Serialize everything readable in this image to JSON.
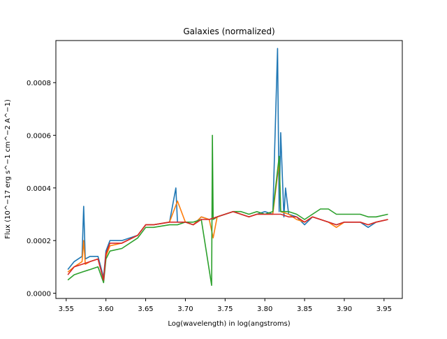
{
  "chart_data": {
    "type": "line",
    "title": "Galaxies (normalized)",
    "xlabel": "Log(wavelength) in log(angstroms)",
    "ylabel": "Flux (10^−17 erg s^−1 cm^−2 A^−1)",
    "xlim": [
      3.537,
      3.973
    ],
    "ylim": [
      -2e-05,
      0.00096
    ],
    "grid": false,
    "legend": "none",
    "x_ticks": [
      3.55,
      3.6,
      3.65,
      3.7,
      3.75,
      3.8,
      3.85,
      3.9,
      3.95
    ],
    "x_tick_labels": [
      "3.55",
      "3.60",
      "3.65",
      "3.70",
      "3.75",
      "3.80",
      "3.85",
      "3.90",
      "3.95"
    ],
    "y_ticks": [
      0.0,
      0.0002,
      0.0004,
      0.0006,
      0.0008
    ],
    "y_tick_labels": [
      "0.0000",
      "0.0002",
      "0.0004",
      "0.0006",
      "0.0008"
    ],
    "series": [
      {
        "color": "#1f77b4",
        "x": [
          3.552,
          3.56,
          3.57,
          3.572,
          3.574,
          3.58,
          3.59,
          3.597,
          3.6,
          3.605,
          3.62,
          3.64,
          3.65,
          3.66,
          3.68,
          3.688,
          3.69,
          3.7,
          3.71,
          3.72,
          3.73,
          3.74,
          3.75,
          3.76,
          3.77,
          3.78,
          3.79,
          3.8,
          3.81,
          3.816,
          3.818,
          3.82,
          3.824,
          3.826,
          3.83,
          3.84,
          3.85,
          3.86,
          3.87,
          3.88,
          3.89,
          3.9,
          3.91,
          3.92,
          3.93,
          3.94,
          3.955
        ],
        "y": [
          9e-05,
          0.00012,
          0.00014,
          0.00033,
          0.00013,
          0.00014,
          0.00014,
          6e-05,
          0.00016,
          0.0002,
          0.0002,
          0.00022,
          0.00026,
          0.00026,
          0.00027,
          0.0004,
          0.00027,
          0.00027,
          0.00026,
          0.00029,
          0.00028,
          0.00029,
          0.0003,
          0.00031,
          0.0003,
          0.00029,
          0.0003,
          0.00031,
          0.0003,
          0.00093,
          0.00031,
          0.00061,
          0.00029,
          0.0004,
          0.0003,
          0.00029,
          0.00026,
          0.00029,
          0.00028,
          0.00027,
          0.00026,
          0.00027,
          0.00027,
          0.00027,
          0.00025,
          0.00027,
          0.00028
        ]
      },
      {
        "color": "#ff7f0e",
        "x": [
          3.552,
          3.56,
          3.57,
          3.572,
          3.574,
          3.58,
          3.59,
          3.597,
          3.6,
          3.605,
          3.62,
          3.64,
          3.65,
          3.66,
          3.68,
          3.69,
          3.7,
          3.71,
          3.72,
          3.73,
          3.735,
          3.74,
          3.75,
          3.76,
          3.77,
          3.78,
          3.79,
          3.8,
          3.81,
          3.818,
          3.82,
          3.83,
          3.84,
          3.85,
          3.86,
          3.87,
          3.88,
          3.89,
          3.9,
          3.91,
          3.92,
          3.93,
          3.94,
          3.955
        ],
        "y": [
          8e-05,
          0.0001,
          0.00012,
          0.0002,
          0.00011,
          0.00012,
          0.00013,
          5e-05,
          0.00014,
          0.00018,
          0.00019,
          0.00022,
          0.00026,
          0.00026,
          0.00027,
          0.00035,
          0.00027,
          0.00026,
          0.00029,
          0.00028,
          0.00021,
          0.00029,
          0.0003,
          0.00031,
          0.0003,
          0.00029,
          0.0003,
          0.0003,
          0.0003,
          0.0005,
          0.00031,
          0.0003,
          0.00028,
          0.00027,
          0.00029,
          0.00028,
          0.00027,
          0.00025,
          0.00027,
          0.00027,
          0.00027,
          0.00026,
          0.00027,
          0.00028
        ]
      },
      {
        "color": "#2ca02c",
        "x": [
          3.552,
          3.56,
          3.57,
          3.58,
          3.59,
          3.597,
          3.6,
          3.605,
          3.62,
          3.64,
          3.65,
          3.66,
          3.68,
          3.69,
          3.7,
          3.71,
          3.72,
          3.733,
          3.734,
          3.735,
          3.74,
          3.75,
          3.76,
          3.77,
          3.78,
          3.79,
          3.8,
          3.81,
          3.818,
          3.82,
          3.83,
          3.84,
          3.85,
          3.86,
          3.87,
          3.88,
          3.89,
          3.9,
          3.91,
          3.92,
          3.93,
          3.94,
          3.955
        ],
        "y": [
          5e-05,
          7e-05,
          8e-05,
          9e-05,
          0.0001,
          4e-05,
          0.00013,
          0.00016,
          0.00017,
          0.00021,
          0.00025,
          0.00025,
          0.00026,
          0.00026,
          0.00027,
          0.00027,
          0.00028,
          3e-05,
          0.0006,
          0.00028,
          0.00029,
          0.0003,
          0.00031,
          0.00031,
          0.0003,
          0.00031,
          0.0003,
          0.00031,
          0.00052,
          0.00031,
          0.00031,
          0.0003,
          0.00028,
          0.0003,
          0.00032,
          0.00032,
          0.0003,
          0.0003,
          0.0003,
          0.0003,
          0.00029,
          0.00029,
          0.0003
        ]
      },
      {
        "color": "#d62728",
        "x": [
          3.552,
          3.56,
          3.57,
          3.58,
          3.59,
          3.597,
          3.6,
          3.605,
          3.62,
          3.64,
          3.65,
          3.66,
          3.68,
          3.69,
          3.7,
          3.71,
          3.72,
          3.73,
          3.74,
          3.75,
          3.76,
          3.77,
          3.78,
          3.79,
          3.8,
          3.81,
          3.82,
          3.83,
          3.84,
          3.85,
          3.86,
          3.87,
          3.88,
          3.89,
          3.9,
          3.91,
          3.92,
          3.93,
          3.94,
          3.955
        ],
        "y": [
          7e-05,
          0.0001,
          0.00011,
          0.00012,
          0.00013,
          5e-05,
          0.00015,
          0.00019,
          0.00019,
          0.00022,
          0.00026,
          0.00026,
          0.00027,
          0.00027,
          0.00027,
          0.00026,
          0.00028,
          0.00028,
          0.00029,
          0.0003,
          0.00031,
          0.0003,
          0.00029,
          0.0003,
          0.0003,
          0.0003,
          0.0003,
          0.00029,
          0.00029,
          0.00027,
          0.00029,
          0.00028,
          0.00027,
          0.00026,
          0.00027,
          0.00027,
          0.00027,
          0.00026,
          0.00027,
          0.00028
        ]
      }
    ]
  }
}
